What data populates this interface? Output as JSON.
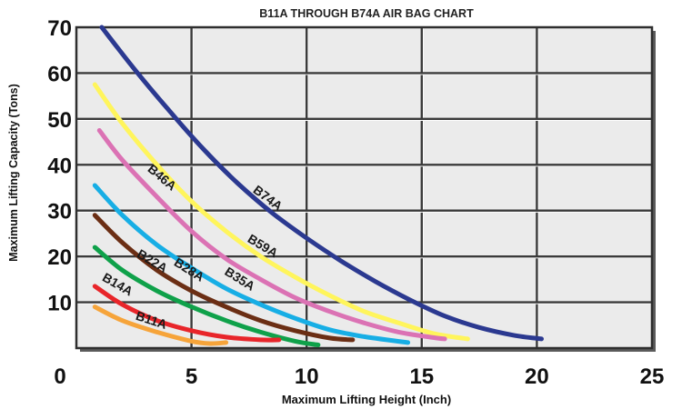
{
  "chart_data": {
    "type": "line",
    "title": "B11A THROUGH B74A AIR BAG CHART",
    "xlabel": "Maximum Lifting Height (Inch)",
    "ylabel": "Maximum Lifting Capacity (Tons)",
    "xlim": [
      0,
      25
    ],
    "ylim": [
      0,
      70
    ],
    "x_ticks": [
      "0",
      "5",
      "10",
      "15",
      "20",
      "25"
    ],
    "y_ticks": [
      "10",
      "20",
      "30",
      "40",
      "50",
      "60",
      "70"
    ],
    "grid": true,
    "series": [
      {
        "name": "B74A",
        "color": "#2B3990",
        "x": [
          1.1,
          2.5,
          4.0,
          5.5,
          7.0,
          8.5,
          10.0,
          11.5,
          13.0,
          14.5,
          16.0,
          17.5,
          19.0,
          20.2
        ],
        "y": [
          70.0,
          61.0,
          52.0,
          43.5,
          36.0,
          29.5,
          24.0,
          19.0,
          14.5,
          10.5,
          7.0,
          4.5,
          2.8,
          2.0
        ]
      },
      {
        "name": "B59A",
        "color": "#FFF55C",
        "x": [
          0.8,
          2.0,
          3.5,
          5.0,
          6.5,
          8.0,
          9.5,
          11.0,
          12.5,
          14.0,
          15.5,
          17.0
        ],
        "y": [
          57.5,
          49.0,
          40.0,
          32.0,
          25.5,
          20.0,
          15.5,
          11.5,
          8.0,
          5.5,
          3.2,
          2.0
        ]
      },
      {
        "name": "B46A",
        "color": "#DB72B4",
        "x": [
          1.0,
          2.0,
          3.5,
          5.0,
          6.5,
          8.0,
          9.5,
          11.0,
          12.5,
          14.0,
          15.5,
          16.0
        ],
        "y": [
          47.5,
          41.0,
          33.0,
          25.5,
          19.5,
          15.0,
          11.0,
          8.0,
          5.5,
          3.5,
          2.3,
          2.0
        ]
      },
      {
        "name": "B35A",
        "color": "#17AEE5",
        "x": [
          0.8,
          2.0,
          3.5,
          5.0,
          6.5,
          8.0,
          9.5,
          11.0,
          12.5,
          14.4
        ],
        "y": [
          35.5,
          29.0,
          22.5,
          17.5,
          13.0,
          9.5,
          6.5,
          4.0,
          2.5,
          1.2
        ]
      },
      {
        "name": "B28A",
        "color": "#6B2E14",
        "x": [
          0.8,
          2.0,
          3.5,
          5.0,
          6.5,
          8.0,
          9.5,
          11.0,
          12.0
        ],
        "y": [
          29.0,
          23.0,
          17.0,
          12.5,
          9.0,
          6.0,
          3.8,
          2.2,
          1.8
        ]
      },
      {
        "name": "B22A",
        "color": "#0FA14A",
        "x": [
          0.8,
          2.0,
          3.5,
          5.0,
          6.5,
          8.0,
          9.5,
          10.5
        ],
        "y": [
          22.0,
          17.0,
          12.5,
          9.0,
          6.0,
          3.5,
          1.5,
          0.7
        ]
      },
      {
        "name": "B14A",
        "color": "#E8252A",
        "x": [
          0.8,
          2.0,
          3.5,
          5.0,
          6.5,
          8.0,
          8.8
        ],
        "y": [
          13.5,
          9.5,
          6.0,
          3.8,
          2.4,
          1.8,
          1.8
        ]
      },
      {
        "name": "B11A",
        "color": "#F6A43A",
        "x": [
          0.8,
          2.0,
          3.5,
          5.0,
          5.8,
          6.5
        ],
        "y": [
          9.0,
          6.0,
          3.5,
          1.5,
          1.0,
          1.2
        ]
      }
    ]
  }
}
